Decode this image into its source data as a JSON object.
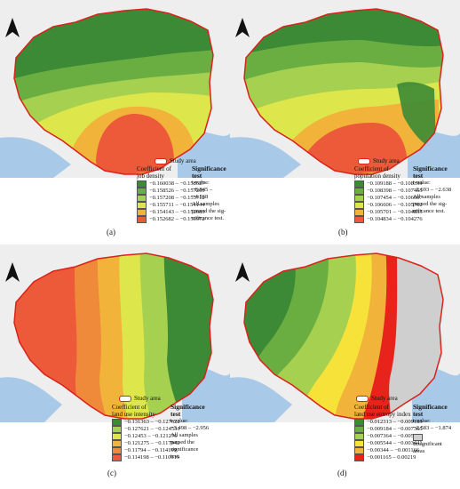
{
  "colors": {
    "boundary": "#d9231b",
    "water": "#a9c9e8",
    "basemap": "#eeeeee",
    "insignificant": "#cfcfcf"
  },
  "study_area_label": "Study area",
  "panels": [
    {
      "caption": "(a)",
      "legend_title": [
        "Coefficient of",
        "job density"
      ],
      "classes": [
        {
          "label": "−0.160038 – −0.158527",
          "color": "#3c8a35"
        },
        {
          "label": "−0.158526 – −0.157209",
          "color": "#6aae42"
        },
        {
          "label": "−0.157208 – −0.155712",
          "color": "#a6d04f"
        },
        {
          "label": "−0.155711 – −0.154144",
          "color": "#dde64a"
        },
        {
          "label": "−0.154143 – −0.152683",
          "color": "#f2b33a"
        },
        {
          "label": "−0.152682 – −0.150972",
          "color": "#ec5a3a"
        }
      ],
      "sig_title": [
        "Significance",
        "test"
      ],
      "sig_lines": [
        "t-value:",
        "−8.845 – −4.568",
        "All samples",
        "passed the sig-",
        "nificance test."
      ]
    },
    {
      "caption": "(b)",
      "legend_title": [
        "Coefficient of",
        "population density"
      ],
      "classes": [
        {
          "label": "−0.109188 – −0.108399",
          "color": "#3c8a35"
        },
        {
          "label": "−0.108398 – −0.107455",
          "color": "#6aae42"
        },
        {
          "label": "−0.107454 – −0.106607",
          "color": "#a6d04f"
        },
        {
          "label": "−0.106606 – −0.105702",
          "color": "#dde64a"
        },
        {
          "label": "−0.105701 – −0.104835",
          "color": "#f2b33a"
        },
        {
          "label": "−0.104834 – −0.104276",
          "color": "#ec5a3a"
        }
      ],
      "sig_title": [
        "Significance",
        "test"
      ],
      "sig_lines": [
        "t-value:",
        "−2.693 – −2.638",
        "All samples",
        "passed the sig-",
        "nificance test."
      ]
    },
    {
      "caption": "(c)",
      "legend_title": [
        "Coefficient of",
        "land use intensity"
      ],
      "classes": [
        {
          "label": "−0.131363 – −0.127622",
          "color": "#3c8a35"
        },
        {
          "label": "−0.127621 – −0.124531",
          "color": "#a6d04f"
        },
        {
          "label": "−0.12453 – −0.121276",
          "color": "#dde64a"
        },
        {
          "label": "−0.121275 – −0.117942",
          "color": "#f2b33a"
        },
        {
          "label": "−0.11794 – −0.114199",
          "color": "#ef8a3a"
        },
        {
          "label": "−0.114198 – −0.110619",
          "color": "#ec5a3a"
        }
      ],
      "sig_title": [
        "Significance",
        "test"
      ],
      "sig_lines": [
        "t-value:",
        "−3.498 – −2.956",
        "All samples",
        "passed the",
        "significance",
        "test."
      ]
    },
    {
      "caption": "(d)",
      "legend_title": [
        "Coefficient of",
        "land use entropy index"
      ],
      "classes": [
        {
          "label": "−0.012313 – −0.009185",
          "color": "#3c8a35"
        },
        {
          "label": "−0.009184 – −0.007365",
          "color": "#6aae42"
        },
        {
          "label": "−0.007364 – −0.005545",
          "color": "#a6d04f"
        },
        {
          "label": "−0.005544 – −0.003441",
          "color": "#f7e23a"
        },
        {
          "label": "−0.00344 – −0.001166",
          "color": "#f2b33a"
        },
        {
          "label": "−0.001165 – 0.00219",
          "color": "#e8231b"
        }
      ],
      "sig_title": [
        "Significance",
        "test"
      ],
      "sig_lines": [
        "t-value:",
        "−2.583 – −1.874"
      ],
      "insignificant_label": [
        "Insignificant",
        "areas"
      ]
    }
  ]
}
